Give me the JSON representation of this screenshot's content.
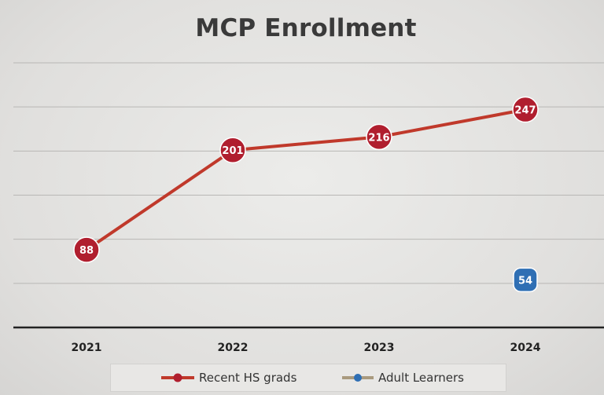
{
  "chart_data": {
    "type": "line",
    "title": "MCP Enrollment",
    "categories": [
      "2021",
      "2022",
      "2023",
      "2024"
    ],
    "series": [
      {
        "name": "Recent HS grads",
        "values": [
          88,
          201,
          216,
          247
        ],
        "color": "#c0392b",
        "marker_color": "#b01e2e"
      },
      {
        "name": "Adult Learners",
        "values": [
          null,
          null,
          null,
          54
        ],
        "color": "#a99a7e",
        "marker_color": "#2f6fb4"
      }
    ],
    "ylim": [
      0,
      300
    ],
    "grid": true,
    "legend_position": "bottom"
  }
}
